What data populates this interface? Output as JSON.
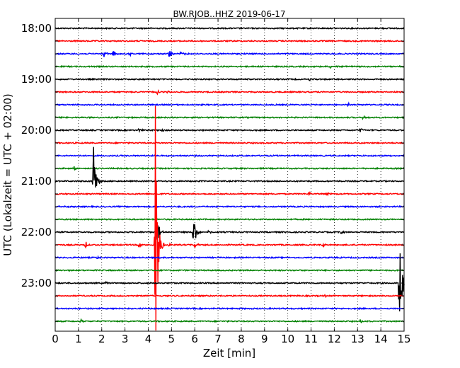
{
  "chart_data": {
    "type": "line",
    "title": "BW.RJOB..HHZ 2019-06-17",
    "xlabel": "Zeit  [min]",
    "ylabel": "UTC (Lokalzeit = UTC + 02:00)",
    "xlim": [
      0,
      15
    ],
    "x_ticks": [
      "0",
      "1",
      "2",
      "3",
      "4",
      "5",
      "6",
      "7",
      "8",
      "9",
      "10",
      "11",
      "12",
      "13",
      "14",
      "15"
    ],
    "y_start": "18:00",
    "y_interval_min": 15,
    "y_ticks": [
      "18:00",
      "19:00",
      "20:00",
      "21:00",
      "22:00",
      "23:00"
    ],
    "grid": "vertical-dotted",
    "colors": [
      "#000000",
      "#ff0000",
      "#0000ff",
      "#008000"
    ],
    "series": [
      {
        "start": "18:00",
        "events": []
      },
      {
        "start": "18:15",
        "events": []
      },
      {
        "start": "18:30",
        "events": [
          {
            "t": 1.6,
            "amp": 2
          },
          {
            "t": 2.1,
            "amp": 5
          },
          {
            "t": 2.5,
            "amp": 4
          },
          {
            "t": 3.2,
            "amp": 2.5
          },
          {
            "t": 4.9,
            "amp": 6
          },
          {
            "t": 5.4,
            "amp": 5
          }
        ]
      },
      {
        "start": "18:45",
        "events": [
          {
            "t": 11.8,
            "amp": 3
          }
        ]
      },
      {
        "start": "19:00",
        "events": [
          {
            "t": 10.9,
            "amp": 2.5
          }
        ]
      },
      {
        "start": "19:15",
        "events": [
          {
            "t": 4.4,
            "amp": 3
          },
          {
            "t": 4.8,
            "amp": 2
          }
        ]
      },
      {
        "start": "19:30",
        "events": [
          {
            "t": 12.6,
            "amp": 3
          }
        ]
      },
      {
        "start": "19:45",
        "events": [
          {
            "t": 13.2,
            "amp": 3
          }
        ]
      },
      {
        "start": "20:00",
        "events": [
          {
            "t": 3.6,
            "amp": 3
          },
          {
            "t": 4.6,
            "amp": 2
          },
          {
            "t": 13.1,
            "amp": 4
          }
        ]
      },
      {
        "start": "20:15",
        "events": []
      },
      {
        "start": "20:30",
        "events": []
      },
      {
        "start": "20:45",
        "events": [
          {
            "t": 0.8,
            "amp": 3
          }
        ]
      },
      {
        "start": "21:00",
        "events": [
          {
            "t": 1.65,
            "amp": 58
          }
        ]
      },
      {
        "start": "21:15",
        "events": [
          {
            "t": 10.9,
            "amp": 3
          },
          {
            "t": 11.7,
            "amp": 2.5
          }
        ]
      },
      {
        "start": "21:30",
        "events": [
          {
            "t": 0.4,
            "amp": 2
          }
        ]
      },
      {
        "start": "21:45",
        "events": []
      },
      {
        "start": "22:00",
        "events": [
          {
            "t": 4.35,
            "amp": 34
          },
          {
            "t": 5.95,
            "amp": 32
          },
          {
            "t": 6.6,
            "amp": 3
          },
          {
            "t": 12.3,
            "amp": 3
          }
        ]
      },
      {
        "start": "22:15",
        "events": [
          {
            "t": 1.3,
            "amp": 6
          },
          {
            "t": 3.6,
            "amp": 6
          },
          {
            "t": 4.3,
            "amp": 240
          },
          {
            "t": 4.9,
            "amp": 4
          },
          {
            "t": 6.0,
            "amp": 5
          },
          {
            "t": 11.5,
            "amp": 3
          }
        ]
      },
      {
        "start": "22:30",
        "events": [
          {
            "t": 1.8,
            "amp": 2
          }
        ]
      },
      {
        "start": "22:45",
        "events": []
      },
      {
        "start": "23:00",
        "events": [
          {
            "t": 2.2,
            "amp": 2
          },
          {
            "t": 14.8,
            "amp": 92
          }
        ]
      },
      {
        "start": "23:15",
        "events": [
          {
            "t": 11.6,
            "amp": 2
          }
        ]
      },
      {
        "start": "23:30",
        "events": []
      },
      {
        "start": "23:45",
        "events": [
          {
            "t": 1.1,
            "amp": 3
          },
          {
            "t": 13.1,
            "amp": 3
          }
        ]
      }
    ]
  }
}
